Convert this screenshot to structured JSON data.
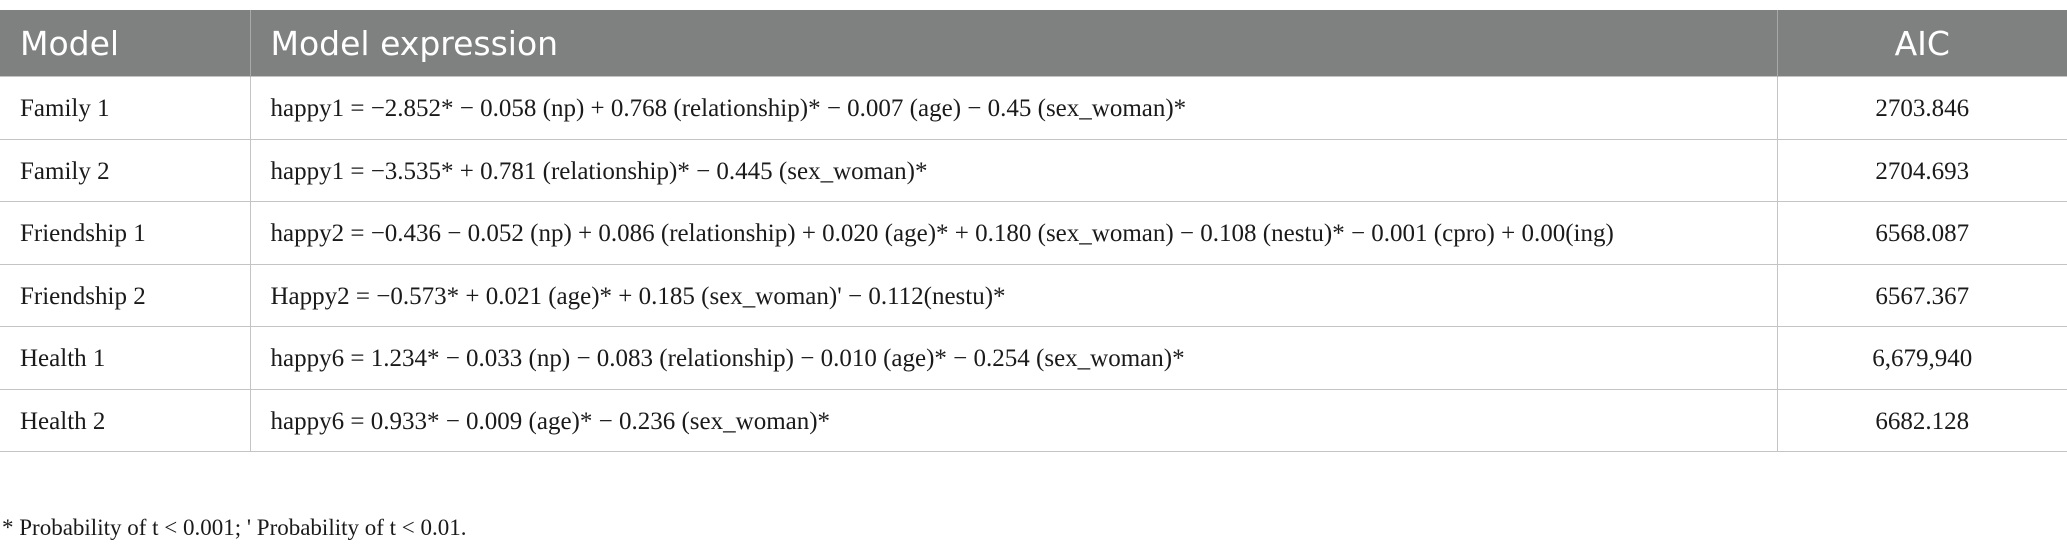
{
  "table": {
    "header": [
      "Model",
      "Model expression",
      "AIC"
    ],
    "rows": [
      [
        "Family 1",
        "happy1 = −2.852* − 0.058 (np) + 0.768 (relationship)* − 0.007 (age) − 0.45 (sex_woman)*",
        "2703.846"
      ],
      [
        "Family 2",
        "happy1 = −3.535* + 0.781 (relationship)* − 0.445 (sex_woman)*",
        "2704.693"
      ],
      [
        "Friendship 1",
        "happy2 = −0.436 − 0.052 (np) + 0.086 (relationship) + 0.020 (age)* + 0.180 (sex_woman) − 0.108 (nestu)* − 0.001 (cpro) + 0.00(ing)",
        "6568.087"
      ],
      [
        "Friendship 2",
        "Happy2 = −0.573* + 0.021 (age)* + 0.185 (sex_woman)' − 0.112(nestu)*",
        "6567.367"
      ],
      [
        "Health 1",
        "happy6 = 1.234* − 0.033 (np) − 0.083 (relationship) − 0.010 (age)* − 0.254 (sex_woman)*",
        "6,679,940"
      ],
      [
        "Health 2",
        "happy6 = 0.933* − 0.009 (age)* − 0.236 (sex_woman)*",
        "6682.128"
      ]
    ]
  },
  "footnote": "* Probability of t < 0.001; ' Probability of t < 0.01."
}
